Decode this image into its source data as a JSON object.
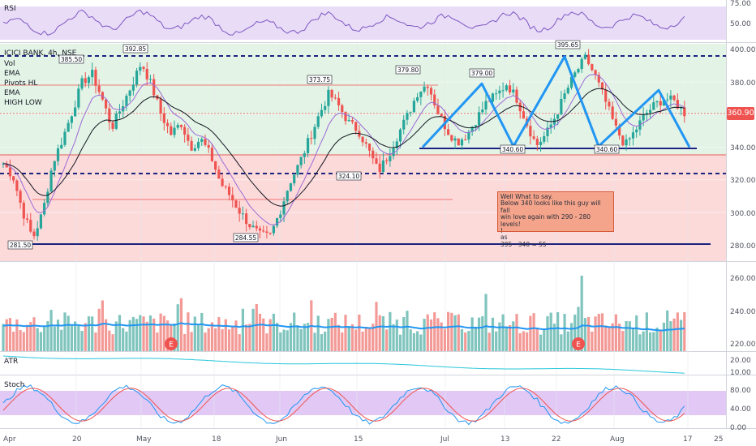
{
  "panes": {
    "rsi": {
      "title": "RSI",
      "ticks": [
        "75.00",
        "50.00"
      ]
    },
    "price": {
      "title": "ICICI BANK, 4h, NSE",
      "indicators": [
        "Vol",
        "EMA",
        "Pivots HL",
        "EMA",
        "HIGH LOW"
      ],
      "ticks": [
        "400.00",
        "380.00",
        "360.00",
        "340.00",
        "320.00",
        "300.00",
        "280.00"
      ],
      "last_price": "360.90",
      "pivot_labels": [
        "385.50",
        "392.85",
        "373.75",
        "379.80",
        "379.00",
        "395.65",
        "340.60",
        "340.60",
        "324.10",
        "284.55",
        "281.50"
      ]
    },
    "volume": {
      "ticks": [
        "260.00",
        "240.00",
        "220.00"
      ],
      "event_marks": [
        "E",
        "E"
      ]
    },
    "atr": {
      "title": "ATR",
      "ticks": [
        "20.00",
        "10.00"
      ]
    },
    "stoch": {
      "title": "Stoch",
      "ticks": [
        "80.00",
        "40.00",
        "0.00"
      ]
    }
  },
  "note": "Well What to say.\nBelow 340 looks like this guy will fall\nwin love again with 290 - 280 levels!\n!\nas\n395 - 340 = 55",
  "x_axis": [
    "Apr",
    "20",
    "May",
    "18",
    "Jun",
    "15",
    "Jul",
    "13",
    "22",
    "Aug",
    "17",
    "25"
  ],
  "colors": {
    "up": "#26a69a",
    "down": "#ef5350",
    "pattern": "#2196f3",
    "level": "#1a237e",
    "rsi_bg": "#e9dcf7",
    "stoch_bg": "#e1c8f5"
  },
  "chart_data": {
    "type": "candlestick",
    "symbol": "ICICI BANK",
    "timeframe": "4h",
    "exchange": "NSE",
    "price_range": [
      270,
      405
    ],
    "last_price": 360.9,
    "key_levels": [
      395.65,
      340.6,
      324.1,
      281.5
    ],
    "pivots": [
      385.5,
      392.85,
      373.75,
      379.8,
      379.0,
      395.65,
      340.6,
      340.6,
      324.1,
      284.55,
      281.5
    ],
    "close_path": [
      330,
      322,
      300,
      284,
      300,
      330,
      345,
      362,
      380,
      385,
      370,
      352,
      365,
      378,
      392,
      378,
      360,
      348,
      355,
      340,
      345,
      335,
      318,
      310,
      300,
      292,
      286,
      285,
      300,
      318,
      330,
      345,
      360,
      373,
      365,
      355,
      350,
      338,
      325,
      335,
      348,
      360,
      374,
      379,
      362,
      350,
      343,
      348,
      358,
      368,
      372,
      379,
      370,
      355,
      341,
      348,
      360,
      374,
      386,
      395,
      383,
      368,
      352,
      341,
      350,
      360,
      366,
      370,
      368,
      361
    ],
    "double_top_pattern": [
      [
        0,
        340
      ],
      [
        1,
        379
      ],
      [
        2,
        340.6
      ],
      [
        3,
        395.65
      ],
      [
        4,
        340.6
      ],
      [
        5,
        375
      ],
      [
        6,
        340
      ]
    ],
    "rsi_range": [
      30,
      80
    ],
    "stoch_range": [
      0,
      100
    ]
  }
}
